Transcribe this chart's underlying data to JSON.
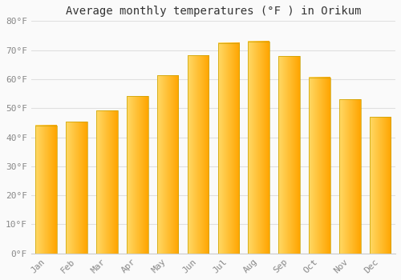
{
  "title": "Average monthly temperatures (°F ) in Orikum",
  "months": [
    "Jan",
    "Feb",
    "Mar",
    "Apr",
    "May",
    "Jun",
    "Jul",
    "Aug",
    "Sep",
    "Oct",
    "Nov",
    "Dec"
  ],
  "values": [
    44.1,
    45.3,
    49.1,
    54.1,
    61.3,
    68.2,
    72.5,
    73.0,
    68.0,
    60.6,
    53.1,
    47.0
  ],
  "bar_color_left": "#FFD966",
  "bar_color_right": "#FFA500",
  "bar_edge_color": "#C8A000",
  "background_color": "#FAFAFA",
  "grid_color": "#E0E0E0",
  "ylim": [
    0,
    80
  ],
  "ytick_step": 10,
  "title_fontsize": 10,
  "tick_fontsize": 8,
  "font_family": "monospace",
  "bar_width": 0.7
}
